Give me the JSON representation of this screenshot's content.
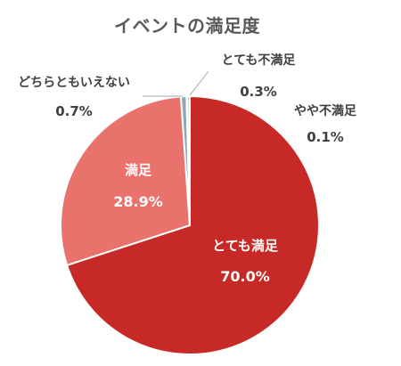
{
  "chart_data": {
    "type": "pie",
    "title": "イベントの満足度",
    "slices": [
      {
        "label": "とても満足",
        "value": 70.0,
        "value_label": "70.0%",
        "color": "#C72A26"
      },
      {
        "label": "満足",
        "value": 28.9,
        "value_label": "28.9%",
        "color": "#E9726D"
      },
      {
        "label": "どちらともいえない",
        "value": 0.7,
        "value_label": "0.7%",
        "color": "#8FA7AE"
      },
      {
        "label": "やや不満足",
        "value": 0.1,
        "value_label": "0.1%",
        "color": "#F2C4C4"
      },
      {
        "label": "とても不満足",
        "value": 0.3,
        "value_label": "0.3%",
        "color": "#9FB9C1"
      }
    ],
    "order": "clockwise from 12 o'clock",
    "legend": "none (data labels)"
  }
}
